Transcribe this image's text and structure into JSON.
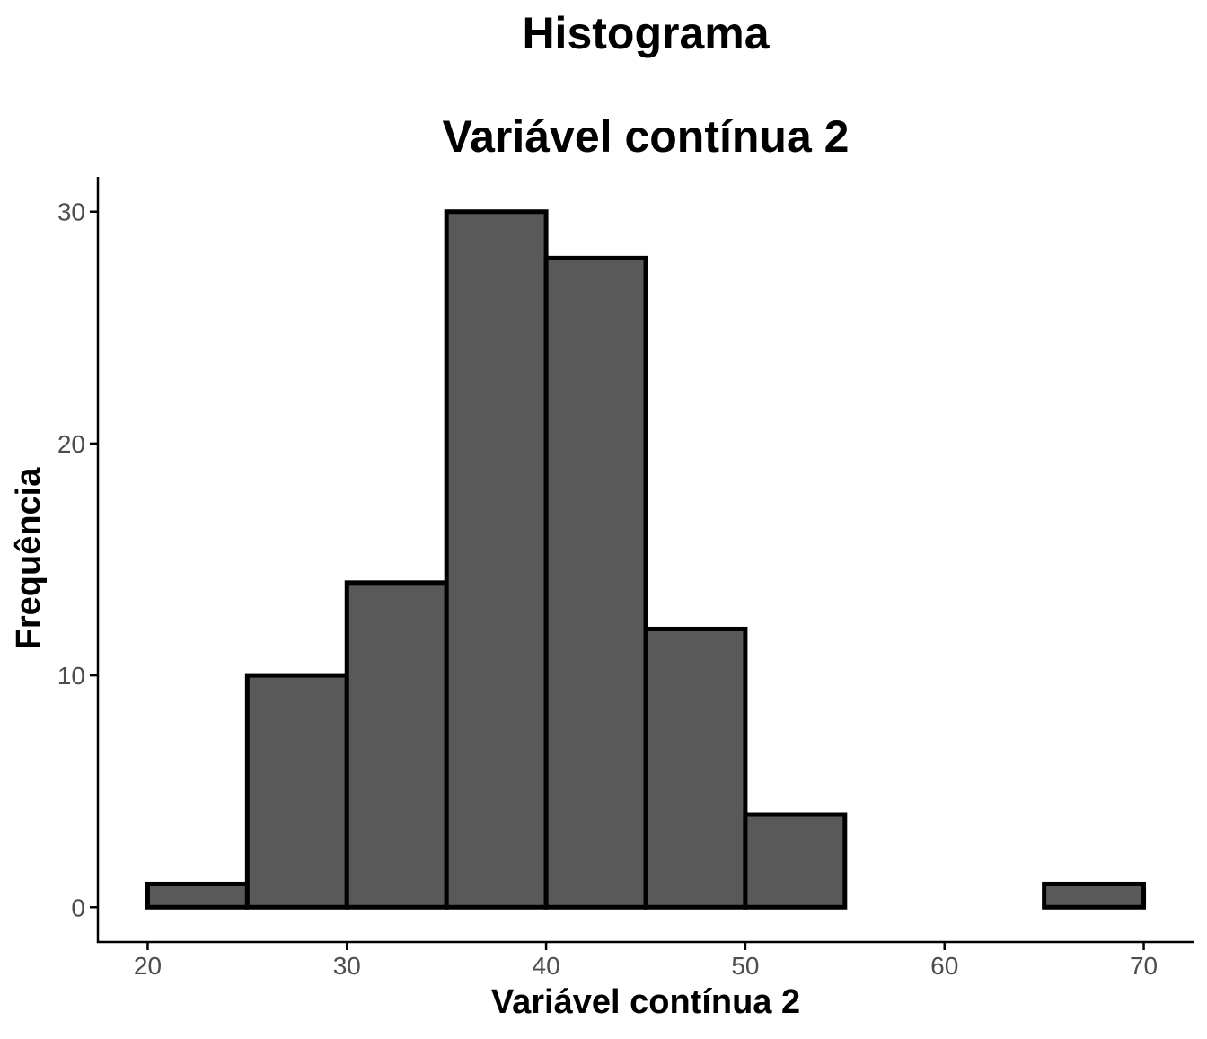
{
  "chart_data": {
    "type": "bar",
    "title": "Histograma",
    "subtitle": "Variável contínua 2",
    "xlabel": "Variável contínua 2",
    "ylabel": "Frequência",
    "bins": [
      {
        "start": 20,
        "end": 25,
        "count": 1
      },
      {
        "start": 25,
        "end": 30,
        "count": 10
      },
      {
        "start": 30,
        "end": 35,
        "count": 14
      },
      {
        "start": 35,
        "end": 40,
        "count": 30
      },
      {
        "start": 40,
        "end": 45,
        "count": 28
      },
      {
        "start": 45,
        "end": 50,
        "count": 12
      },
      {
        "start": 50,
        "end": 55,
        "count": 4
      },
      {
        "start": 55,
        "end": 60,
        "count": 0
      },
      {
        "start": 60,
        "end": 65,
        "count": 0
      },
      {
        "start": 65,
        "end": 70,
        "count": 1
      }
    ],
    "x_ticks": [
      "20",
      "30",
      "40",
      "50",
      "60",
      "70"
    ],
    "y_ticks": [
      "0",
      "10",
      "20",
      "30"
    ],
    "xlim": [
      17.5,
      72.5
    ],
    "ylim": [
      -1.5,
      31.5
    ],
    "grid": false,
    "colors": {
      "bar_fill": "#595959",
      "bar_stroke": "#000000",
      "axis": "#000000",
      "tick_label": "#4d4d4d"
    }
  }
}
